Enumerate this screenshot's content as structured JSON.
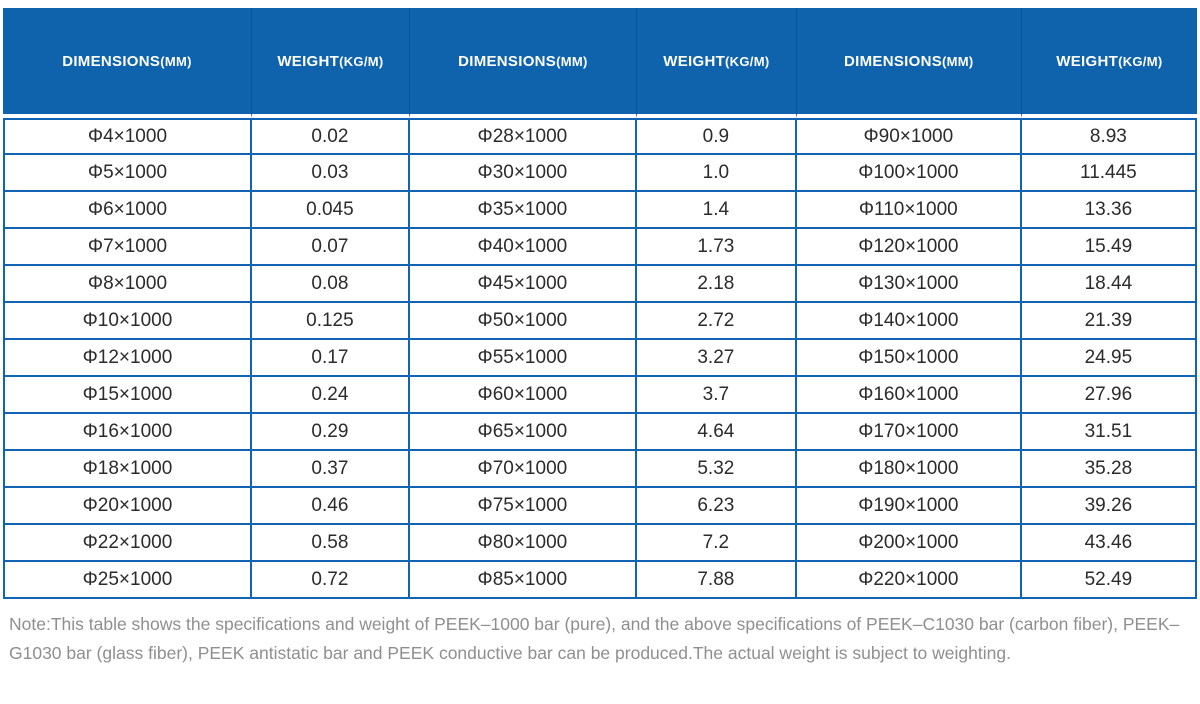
{
  "table": {
    "header": [
      {
        "label": "DIMENSIONS",
        "unit": "(MM)"
      },
      {
        "label": "WEIGHT",
        "unit": "(KG/M)"
      },
      {
        "label": "DIMENSIONS",
        "unit": "(MM)"
      },
      {
        "label": "WEIGHT",
        "unit": "(KG/M)"
      },
      {
        "label": "DIMENSIONS",
        "unit": "(MM)"
      },
      {
        "label": "WEIGHT",
        "unit": "(KG/M)"
      }
    ],
    "rows": [
      [
        "Φ4×1000",
        "0.02",
        "Φ28×1000",
        "0.9",
        "Φ90×1000",
        "8.93"
      ],
      [
        "Φ5×1000",
        "0.03",
        "Φ30×1000",
        "1.0",
        "Φ100×1000",
        "11.445"
      ],
      [
        "Φ6×1000",
        "0.045",
        "Φ35×1000",
        "1.4",
        "Φ110×1000",
        "13.36"
      ],
      [
        "Φ7×1000",
        "0.07",
        "Φ40×1000",
        "1.73",
        "Φ120×1000",
        "15.49"
      ],
      [
        "Φ8×1000",
        "0.08",
        "Φ45×1000",
        "2.18",
        "Φ130×1000",
        "18.44"
      ],
      [
        "Φ10×1000",
        "0.125",
        "Φ50×1000",
        "2.72",
        "Φ140×1000",
        "21.39"
      ],
      [
        "Φ12×1000",
        "0.17",
        "Φ55×1000",
        "3.27",
        "Φ150×1000",
        "24.95"
      ],
      [
        "Φ15×1000",
        "0.24",
        "Φ60×1000",
        "3.7",
        "Φ160×1000",
        "27.96"
      ],
      [
        "Φ16×1000",
        "0.29",
        "Φ65×1000",
        "4.64",
        "Φ170×1000",
        "31.51"
      ],
      [
        "Φ18×1000",
        "0.37",
        "Φ70×1000",
        "5.32",
        "Φ180×1000",
        "35.28"
      ],
      [
        "Φ20×1000",
        "0.46",
        "Φ75×1000",
        "6.23",
        "Φ190×1000",
        "39.26"
      ],
      [
        "Φ22×1000",
        "0.58",
        "Φ80×1000",
        "7.2",
        "Φ200×1000",
        "43.46"
      ],
      [
        "Φ25×1000",
        "0.72",
        "Φ85×1000",
        "7.88",
        "Φ220×1000",
        "52.49"
      ]
    ]
  },
  "note": {
    "text": "Note:This table shows the specifications and weight of PEEK–1000 bar (pure), and the above specifications of PEEK–C1030 bar (carbon fiber), PEEK–G1030 bar (glass fiber), PEEK antistatic bar and PEEK conductive bar can be produced.The actual weight is subject to weighting."
  },
  "colors": {
    "header_bg": "#0f63ad",
    "header_divider": "#0b5397",
    "grid_border": "#1164b4",
    "body_text": "#2b2b2b",
    "note_text": "#8f8f8f"
  },
  "chart_data": {
    "type": "table",
    "title": "PEEK-1000 bar (pure) specifications and weight",
    "columns": [
      "DIMENSIONS(MM)",
      "WEIGHT(KG/M)",
      "DIMENSIONS(MM)",
      "WEIGHT(KG/M)",
      "DIMENSIONS(MM)",
      "WEIGHT(KG/M)"
    ],
    "rows": [
      [
        "Φ4×1000",
        0.02,
        "Φ28×1000",
        0.9,
        "Φ90×1000",
        8.93
      ],
      [
        "Φ5×1000",
        0.03,
        "Φ30×1000",
        1.0,
        "Φ100×1000",
        11.445
      ],
      [
        "Φ6×1000",
        0.045,
        "Φ35×1000",
        1.4,
        "Φ110×1000",
        13.36
      ],
      [
        "Φ7×1000",
        0.07,
        "Φ40×1000",
        1.73,
        "Φ120×1000",
        15.49
      ],
      [
        "Φ8×1000",
        0.08,
        "Φ45×1000",
        2.18,
        "Φ130×1000",
        18.44
      ],
      [
        "Φ10×1000",
        0.125,
        "Φ50×1000",
        2.72,
        "Φ140×1000",
        21.39
      ],
      [
        "Φ12×1000",
        0.17,
        "Φ55×1000",
        3.27,
        "Φ150×1000",
        24.95
      ],
      [
        "Φ15×1000",
        0.24,
        "Φ60×1000",
        3.7,
        "Φ160×1000",
        27.96
      ],
      [
        "Φ16×1000",
        0.29,
        "Φ65×1000",
        4.64,
        "Φ170×1000",
        31.51
      ],
      [
        "Φ18×1000",
        0.37,
        "Φ70×1000",
        5.32,
        "Φ180×1000",
        35.28
      ],
      [
        "Φ20×1000",
        0.46,
        "Φ75×1000",
        6.23,
        "Φ190×1000",
        39.26
      ],
      [
        "Φ22×1000",
        0.58,
        "Φ80×1000",
        7.2,
        "Φ200×1000",
        43.46
      ],
      [
        "Φ25×1000",
        0.72,
        "Φ85×1000",
        7.88,
        "Φ220×1000",
        52.49
      ]
    ]
  }
}
